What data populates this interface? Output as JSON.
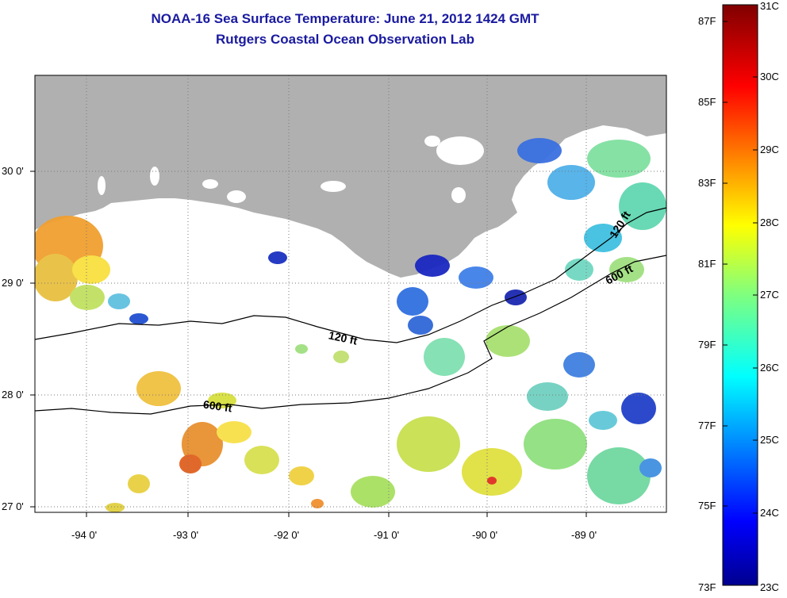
{
  "header": {
    "title": "NOAA-16 Sea Surface Temperature:  June 21, 2012 1424 GMT",
    "subtitle": "Rutgers Coastal Ocean Observation Lab"
  },
  "map": {
    "lat_labels": [
      "30 0'",
      "29 0'",
      "28 0'",
      "27 0'"
    ],
    "lon_labels": [
      "-94 0'",
      "-93 0'",
      "-92 0'",
      "-91 0'",
      "-90 0'",
      "-89 0'"
    ],
    "lat_range": [
      26.98,
      30.85
    ],
    "lon_range": [
      -94.55,
      -88.25
    ],
    "contours": [
      {
        "label": "120 ft"
      },
      {
        "label": "600 ft"
      },
      {
        "label": "120 ft"
      },
      {
        "label": "600 ft"
      }
    ],
    "colors": {
      "land": "#b0b0b0",
      "water_no_data": "#ffffff",
      "grid": "#7a7a7a"
    }
  },
  "colorbar": {
    "fahrenheit_labels": [
      "87F",
      "85F",
      "83F",
      "81F",
      "79F",
      "77F",
      "75F",
      "73F"
    ],
    "celsius_labels": [
      "31C",
      "30C",
      "29C",
      "28C",
      "27C",
      "26C",
      "25C",
      "24C",
      "23C"
    ],
    "range_c": [
      23,
      31
    ]
  }
}
